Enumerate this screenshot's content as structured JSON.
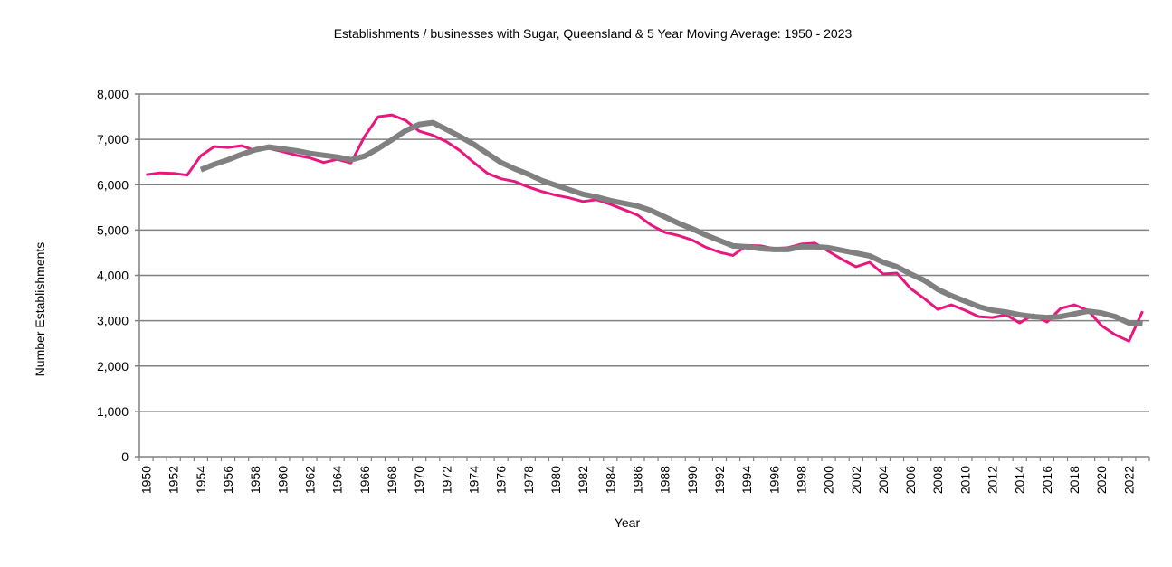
{
  "chart_data": {
    "type": "line",
    "title": "Establishments / businesses with Sugar, Queensland & 5 Year Moving Average: 1950 - 2023",
    "xlabel": "Year",
    "ylabel": "Number Establishments",
    "ylim": [
      0,
      8000
    ],
    "yticks": [
      0,
      1000,
      2000,
      3000,
      4000,
      5000,
      6000,
      7000,
      8000
    ],
    "ytick_labels": [
      "0",
      "1,000",
      "2,000",
      "3,000",
      "4,000",
      "5,000",
      "6,000",
      "7,000",
      "8,000"
    ],
    "x": [
      1950,
      1951,
      1952,
      1953,
      1954,
      1955,
      1956,
      1957,
      1958,
      1959,
      1960,
      1961,
      1962,
      1963,
      1964,
      1965,
      1966,
      1967,
      1968,
      1969,
      1970,
      1971,
      1972,
      1973,
      1974,
      1975,
      1976,
      1977,
      1978,
      1979,
      1980,
      1981,
      1982,
      1983,
      1984,
      1985,
      1986,
      1987,
      1988,
      1989,
      1990,
      1991,
      1992,
      1993,
      1994,
      1995,
      1996,
      1997,
      1998,
      1999,
      2000,
      2001,
      2002,
      2003,
      2004,
      2005,
      2006,
      2007,
      2008,
      2009,
      2010,
      2011,
      2012,
      2013,
      2014,
      2015,
      2016,
      2017,
      2018,
      2019,
      2020,
      2021,
      2022,
      2023
    ],
    "xtick_labels": [
      "1950",
      "1952",
      "1954",
      "1956",
      "1958",
      "1960",
      "1962",
      "1964",
      "1966",
      "1968",
      "1970",
      "1972",
      "1974",
      "1976",
      "1978",
      "1980",
      "1982",
      "1984",
      "1986",
      "1988",
      "1990",
      "1992",
      "1994",
      "1996",
      "1998",
      "2000",
      "2002",
      "2004",
      "2006",
      "2008",
      "2010",
      "2012",
      "2014",
      "2016",
      "2018",
      "2020",
      "2022"
    ],
    "grid": true,
    "legend": "none",
    "series": [
      {
        "name": "Establishments",
        "color": "#E8177E",
        "values": [
          6220,
          6260,
          6250,
          6210,
          6640,
          6840,
          6820,
          6860,
          6750,
          6800,
          6730,
          6650,
          6590,
          6490,
          6560,
          6480,
          7060,
          7500,
          7540,
          7420,
          7180,
          7090,
          6950,
          6750,
          6490,
          6250,
          6130,
          6070,
          5950,
          5850,
          5770,
          5710,
          5630,
          5670,
          5570,
          5450,
          5330,
          5110,
          4950,
          4880,
          4780,
          4620,
          4510,
          4440,
          4660,
          4650,
          4590,
          4610,
          4690,
          4710,
          4530,
          4350,
          4190,
          4290,
          4030,
          4050,
          3710,
          3490,
          3250,
          3350,
          3230,
          3090,
          3070,
          3130,
          2950,
          3130,
          2970,
          3270,
          3350,
          3230,
          2890,
          2690,
          2550,
          3210
        ]
      },
      {
        "name": "5 Year Moving Average",
        "color": "#808080",
        "values": [
          null,
          null,
          null,
          null,
          6330,
          6450,
          6550,
          6670,
          6770,
          6830,
          6790,
          6750,
          6690,
          6650,
          6610,
          6550,
          6630,
          6800,
          6990,
          7190,
          7330,
          7370,
          7220,
          7060,
          6890,
          6690,
          6490,
          6350,
          6230,
          6090,
          5990,
          5890,
          5790,
          5730,
          5650,
          5590,
          5530,
          5430,
          5290,
          5150,
          5030,
          4890,
          4770,
          4650,
          4630,
          4590,
          4570,
          4570,
          4630,
          4630,
          4610,
          4550,
          4490,
          4430,
          4290,
          4190,
          4030,
          3890,
          3690,
          3550,
          3430,
          3310,
          3230,
          3190,
          3130,
          3090,
          3070,
          3090,
          3150,
          3210,
          3170,
          3090,
          2950,
          2930
        ]
      }
    ]
  }
}
